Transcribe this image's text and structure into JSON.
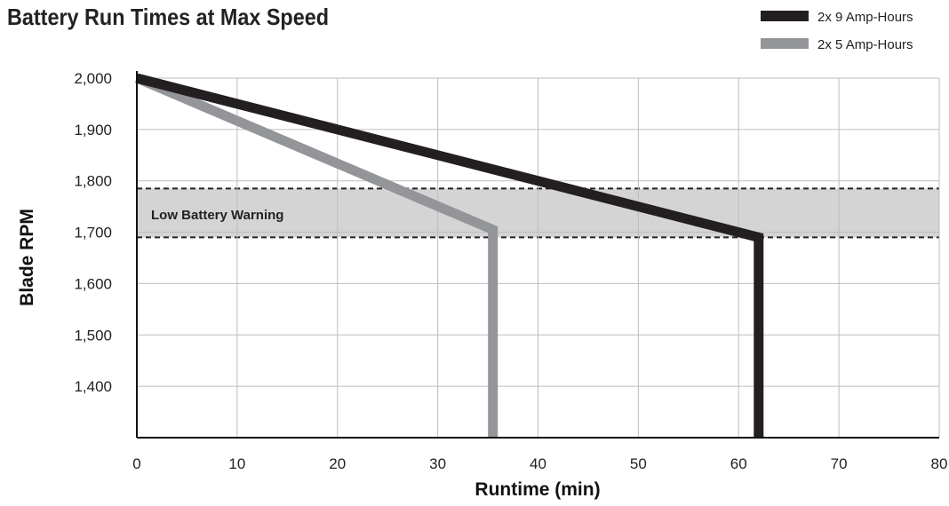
{
  "chart_data": {
    "type": "line",
    "title": "Battery Run Times at Max Speed",
    "xlabel": "Runtime (min)",
    "ylabel": "Blade RPM",
    "xlim": [
      0,
      80
    ],
    "ylim": [
      1300,
      2000
    ],
    "x_ticks": [
      0,
      10,
      20,
      30,
      40,
      50,
      60,
      70,
      80
    ],
    "x_tick_labels": [
      "0",
      "10",
      "20",
      "30",
      "40",
      "50",
      "60",
      "70",
      "80"
    ],
    "y_ticks": [
      1400,
      1500,
      1600,
      1700,
      1800,
      1900,
      2000
    ],
    "y_tick_labels": [
      "1,400",
      "1,500",
      "1,600",
      "1,700",
      "1,800",
      "1,900",
      "2,000"
    ],
    "grid": true,
    "legend_position": "top-right",
    "band": {
      "label": "Low Battery Warning",
      "y_min": 1690,
      "y_max": 1785,
      "color": "#d4d4d4"
    },
    "series": [
      {
        "name": "2x 9 Amp-Hours",
        "color": "#231f20",
        "points": [
          [
            0,
            2000
          ],
          [
            62,
            1690
          ],
          [
            62,
            1300
          ]
        ]
      },
      {
        "name": "2x 5 Amp-Hours",
        "color": "#939598",
        "points": [
          [
            0,
            2000
          ],
          [
            35.5,
            1705
          ],
          [
            35.5,
            1300
          ]
        ]
      }
    ]
  }
}
